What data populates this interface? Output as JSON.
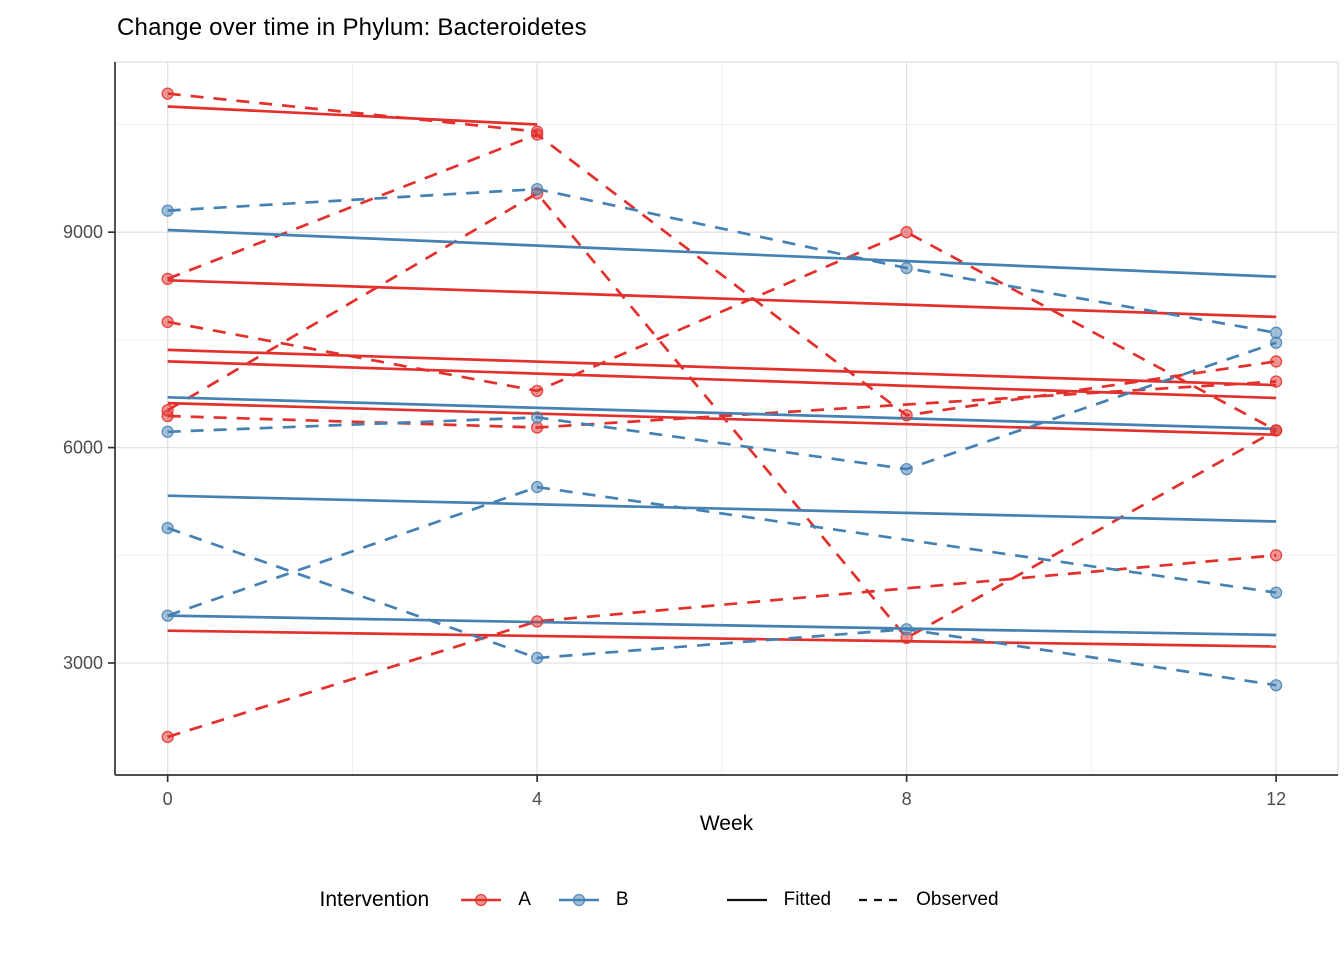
{
  "chart_data": {
    "type": "line",
    "title": "Change over time in Phylum: Bacteroidetes",
    "xlabel": "Week",
    "ylabel": "",
    "xlim": [
      -0.57,
      12.67
    ],
    "ylim": [
      1440,
      11370
    ],
    "x_ticks": [
      0,
      4,
      8,
      12
    ],
    "x_minor": [
      2,
      6,
      10
    ],
    "y_ticks": [
      3000,
      6000,
      9000
    ],
    "y_minor": [
      1500,
      4500,
      7500,
      10500
    ],
    "grid": "on",
    "legend_position": "bottom",
    "colors": {
      "A": "#E2302C",
      "B": "#4681B4"
    },
    "series": [
      {
        "subject": "A1",
        "group": "A",
        "fitted": {
          "weeks": [
            0,
            4
          ],
          "values": [
            10750,
            10500
          ]
        },
        "observed": {
          "weeks": [
            0,
            4
          ],
          "values": [
            10930,
            10400
          ]
        }
      },
      {
        "subject": "A2",
        "group": "A",
        "fitted": {
          "weeks": [
            0,
            12
          ],
          "values": [
            8330,
            7820
          ]
        },
        "observed": {
          "weeks": [
            0,
            4,
            8,
            12
          ],
          "values": [
            8350,
            10360,
            6450,
            7200
          ]
        }
      },
      {
        "subject": "A3",
        "group": "A",
        "fitted": {
          "weeks": [
            0,
            12
          ],
          "values": [
            7360,
            6870
          ]
        },
        "observed": {
          "weeks": [
            0,
            4,
            8,
            12
          ],
          "values": [
            7750,
            6790,
            9000,
            6240
          ]
        }
      },
      {
        "subject": "A4",
        "group": "A",
        "fitted": {
          "weeks": [
            0,
            12
          ],
          "values": [
            6620,
            6180
          ]
        },
        "observed": {
          "weeks": [
            0,
            4,
            12
          ],
          "values": [
            6440,
            6280,
            6920
          ]
        }
      },
      {
        "subject": "A5",
        "group": "A",
        "fitted": {
          "weeks": [
            0,
            12
          ],
          "values": [
            3450,
            3230
          ]
        },
        "observed": {
          "weeks": [
            0,
            4,
            12
          ],
          "values": [
            1970,
            3580,
            4500
          ]
        }
      },
      {
        "subject": "A6",
        "group": "A",
        "fitted": {
          "weeks": [
            0,
            12
          ],
          "values": [
            7200,
            6690
          ]
        },
        "observed": {
          "weeks": [
            0,
            4,
            8,
            12
          ],
          "values": [
            6520,
            9540,
            3350,
            6240
          ]
        }
      },
      {
        "subject": "B1",
        "group": "B",
        "fitted": {
          "weeks": [
            0,
            12
          ],
          "values": [
            9030,
            8380
          ]
        },
        "observed": {
          "weeks": [
            0,
            4,
            8,
            12
          ],
          "values": [
            9300,
            9600,
            8500,
            7600
          ]
        }
      },
      {
        "subject": "B2",
        "group": "B",
        "fitted": {
          "weeks": [
            0,
            12
          ],
          "values": [
            6700,
            6260
          ]
        },
        "observed": {
          "weeks": [
            0,
            4,
            8,
            12
          ],
          "values": [
            6220,
            6420,
            5700,
            7460
          ]
        }
      },
      {
        "subject": "B3",
        "group": "B",
        "fitted": {
          "weeks": [
            0,
            12
          ],
          "values": [
            3660,
            3390
          ]
        },
        "observed": {
          "weeks": [
            0,
            4,
            8,
            12
          ],
          "values": [
            4880,
            3070,
            3470,
            2690
          ]
        }
      },
      {
        "subject": "B4",
        "group": "B",
        "fitted": {
          "weeks": [
            0,
            12
          ],
          "values": [
            5330,
            4970
          ]
        },
        "observed": {
          "weeks": [
            0,
            4,
            12
          ],
          "values": [
            3660,
            5450,
            3980
          ]
        }
      }
    ],
    "legend": {
      "title": "Intervention",
      "groups": [
        {
          "label": "A",
          "color": "#E2302C"
        },
        {
          "label": "B",
          "color": "#4681B4"
        }
      ],
      "linetypes": [
        {
          "label": "Fitted",
          "style": "solid"
        },
        {
          "label": "Observed",
          "style": "dashed"
        }
      ]
    },
    "style": {
      "grid_major_color": "#E2E2E2",
      "grid_minor_color": "#EFEFEF",
      "panel_border_color": "#D9D9D9",
      "axis_color": "#333333",
      "tick_label_color": "#4D4D4D",
      "point_radius": 5.5,
      "line_width": 2.7
    }
  }
}
